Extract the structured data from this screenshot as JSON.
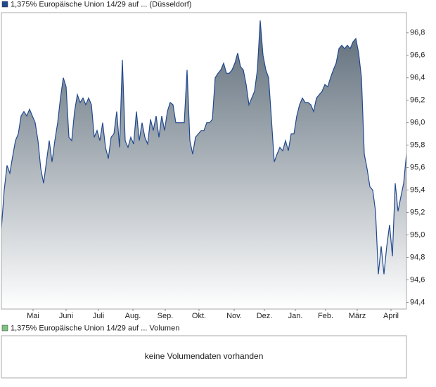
{
  "chart_data": {
    "type": "area",
    "series": [
      {
        "name": "1,375% Europäische Union 14/29 auf ... (Düsseldorf)",
        "color": "#22498f",
        "fill": "#5c6b78",
        "values": [
          95.06,
          95.4,
          95.62,
          95.55,
          95.7,
          95.84,
          95.9,
          96.06,
          96.1,
          96.06,
          96.12,
          96.06,
          96.0,
          95.84,
          95.59,
          95.46,
          95.65,
          95.84,
          95.65,
          95.84,
          96.0,
          96.22,
          96.4,
          96.32,
          95.87,
          95.84,
          96.1,
          96.25,
          96.18,
          96.22,
          96.16,
          96.22,
          96.16,
          95.87,
          95.93,
          95.84,
          96.0,
          95.78,
          95.68,
          95.87,
          95.9,
          96.1,
          95.78,
          96.56,
          95.84,
          95.78,
          95.87,
          95.81,
          96.1,
          95.84,
          96.0,
          95.87,
          95.81,
          96.03,
          95.93,
          96.06,
          95.87,
          96.06,
          95.93,
          96.1,
          96.18,
          96.16,
          96.0,
          96.0,
          96.0,
          96.0,
          96.47,
          95.84,
          95.72,
          95.87,
          95.9,
          95.93,
          95.93,
          96.0,
          96.0,
          96.03,
          96.4,
          96.44,
          96.47,
          96.53,
          96.44,
          96.44,
          96.47,
          96.53,
          96.62,
          96.5,
          96.47,
          96.34,
          96.16,
          96.22,
          96.28,
          96.47,
          96.91,
          96.6,
          96.47,
          96.4,
          96.03,
          95.65,
          95.72,
          95.78,
          95.75,
          95.84,
          95.75,
          95.9,
          95.9,
          96.06,
          96.16,
          96.22,
          96.18,
          96.18,
          96.16,
          96.1,
          96.22,
          96.25,
          96.28,
          96.34,
          96.32,
          96.4,
          96.47,
          96.53,
          96.66,
          96.69,
          96.66,
          96.69,
          96.66,
          96.72,
          96.75,
          96.62,
          96.4,
          95.72,
          95.59,
          95.43,
          95.4,
          95.21,
          94.65,
          94.9,
          94.65,
          94.9,
          95.09,
          94.81,
          95.46,
          95.21,
          95.34,
          95.46,
          95.72
        ]
      }
    ],
    "xlim": [
      0,
      144
    ],
    "xticks": [
      {
        "value": 11.25,
        "label": "Mai"
      },
      {
        "value": 23,
        "label": "Juni"
      },
      {
        "value": 34.5,
        "label": "Juli"
      },
      {
        "value": 46.75,
        "label": "Aug."
      },
      {
        "value": 58.25,
        "label": "Sep."
      },
      {
        "value": 70.25,
        "label": "Okt."
      },
      {
        "value": 82.75,
        "label": "Nov."
      },
      {
        "value": 93.5,
        "label": "Dez."
      },
      {
        "value": 104.5,
        "label": "Jan."
      },
      {
        "value": 115.25,
        "label": "Feb."
      },
      {
        "value": 126.5,
        "label": "März"
      },
      {
        "value": 138.5,
        "label": "April"
      }
    ],
    "ylim": [
      94.34,
      96.98
    ],
    "yticks": [
      {
        "value": 94.4,
        "label": "94,4"
      },
      {
        "value": 94.6,
        "label": "94,6"
      },
      {
        "value": 94.8,
        "label": "94,8"
      },
      {
        "value": 95.0,
        "label": "95,0"
      },
      {
        "value": 95.2,
        "label": "95,2"
      },
      {
        "value": 95.4,
        "label": "95,4"
      },
      {
        "value": 95.6,
        "label": "95,6"
      },
      {
        "value": 95.8,
        "label": "95,8"
      },
      {
        "value": 96.0,
        "label": "96,0"
      },
      {
        "value": 96.2,
        "label": "96,2"
      },
      {
        "value": 96.4,
        "label": "96,4"
      },
      {
        "value": 96.6,
        "label": "96,6"
      },
      {
        "value": 96.8,
        "label": "96,8"
      }
    ],
    "grid": false
  },
  "volume_panel": {
    "legend": "1,375% Europäische Union 14/29 auf ... Volumen",
    "color": "#7cc47c",
    "message": "keine Volumendaten vorhanden"
  }
}
